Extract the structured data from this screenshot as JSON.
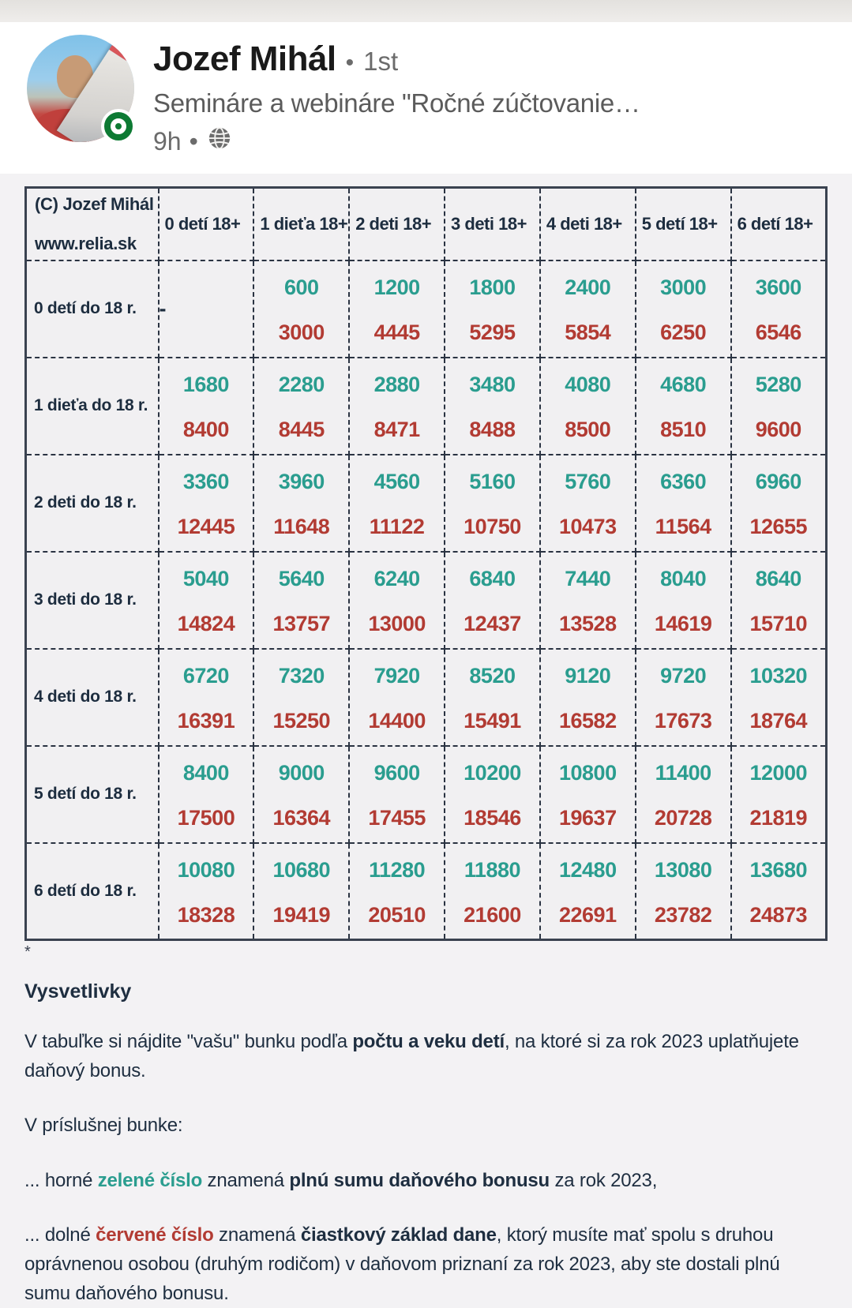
{
  "post": {
    "author": "Jozef Mihál",
    "degree_separator": "•",
    "degree": "1st",
    "subtitle": "Semináre a webináre \"Ročné zúčtovanie…",
    "time": "9h",
    "meta_separator": "•"
  },
  "table": {
    "corner_line1": "(C) Jozef Mihál",
    "corner_line2": "www.relia.sk",
    "columns": [
      "0 detí 18+",
      "1 dieťa 18+",
      "2 deti 18+",
      "3 deti 18+",
      "4 deti 18+",
      "5 detí 18+",
      "6 detí 18+"
    ],
    "rows": [
      {
        "label": "0 detí do 18 r.",
        "cells": [
          {
            "dash": "-"
          },
          {
            "top": "600",
            "bottom": "3000"
          },
          {
            "top": "1200",
            "bottom": "4445"
          },
          {
            "top": "1800",
            "bottom": "5295"
          },
          {
            "top": "2400",
            "bottom": "5854"
          },
          {
            "top": "3000",
            "bottom": "6250"
          },
          {
            "top": "3600",
            "bottom": "6546"
          }
        ]
      },
      {
        "label": "1 dieťa do 18 r.",
        "cells": [
          {
            "top": "1680",
            "bottom": "8400"
          },
          {
            "top": "2280",
            "bottom": "8445"
          },
          {
            "top": "2880",
            "bottom": "8471"
          },
          {
            "top": "3480",
            "bottom": "8488"
          },
          {
            "top": "4080",
            "bottom": "8500"
          },
          {
            "top": "4680",
            "bottom": "8510"
          },
          {
            "top": "5280",
            "bottom": "9600"
          }
        ]
      },
      {
        "label": "2 deti do 18 r.",
        "cells": [
          {
            "top": "3360",
            "bottom": "12445"
          },
          {
            "top": "3960",
            "bottom": "11648"
          },
          {
            "top": "4560",
            "bottom": "11122"
          },
          {
            "top": "5160",
            "bottom": "10750"
          },
          {
            "top": "5760",
            "bottom": "10473"
          },
          {
            "top": "6360",
            "bottom": "11564"
          },
          {
            "top": "6960",
            "bottom": "12655"
          }
        ]
      },
      {
        "label": "3 deti do 18 r.",
        "cells": [
          {
            "top": "5040",
            "bottom": "14824"
          },
          {
            "top": "5640",
            "bottom": "13757"
          },
          {
            "top": "6240",
            "bottom": "13000"
          },
          {
            "top": "6840",
            "bottom": "12437"
          },
          {
            "top": "7440",
            "bottom": "13528"
          },
          {
            "top": "8040",
            "bottom": "14619"
          },
          {
            "top": "8640",
            "bottom": "15710"
          }
        ]
      },
      {
        "label": "4 deti do 18 r.",
        "cells": [
          {
            "top": "6720",
            "bottom": "16391"
          },
          {
            "top": "7320",
            "bottom": "15250"
          },
          {
            "top": "7920",
            "bottom": "14400"
          },
          {
            "top": "8520",
            "bottom": "15491"
          },
          {
            "top": "9120",
            "bottom": "16582"
          },
          {
            "top": "9720",
            "bottom": "17673"
          },
          {
            "top": "10320",
            "bottom": "18764"
          }
        ]
      },
      {
        "label": "5 detí do 18 r.",
        "cells": [
          {
            "top": "8400",
            "bottom": "17500"
          },
          {
            "top": "9000",
            "bottom": "16364"
          },
          {
            "top": "9600",
            "bottom": "17455"
          },
          {
            "top": "10200",
            "bottom": "18546"
          },
          {
            "top": "10800",
            "bottom": "19637"
          },
          {
            "top": "11400",
            "bottom": "20728"
          },
          {
            "top": "12000",
            "bottom": "21819"
          }
        ]
      },
      {
        "label": "6 detí do 18 r.",
        "cells": [
          {
            "top": "10080",
            "bottom": "18328"
          },
          {
            "top": "10680",
            "bottom": "19419"
          },
          {
            "top": "11280",
            "bottom": "20510"
          },
          {
            "top": "11880",
            "bottom": "21600"
          },
          {
            "top": "12480",
            "bottom": "22691"
          },
          {
            "top": "13080",
            "bottom": "23782"
          },
          {
            "top": "13680",
            "bottom": "24873"
          }
        ]
      }
    ]
  },
  "footnote_marker": "*",
  "explanation": {
    "title": "Vysvetlivky",
    "p1": [
      {
        "t": "V tabuľke si nájdite \"vašu\" bunku podľa "
      },
      {
        "t": "počtu a veku detí",
        "b": true
      },
      {
        "t": ", na ktoré si za rok 2023 uplatňujete daňový bonus."
      }
    ],
    "p2": [
      {
        "t": "V príslušnej bunke:"
      }
    ],
    "p3": [
      {
        "t": "... horné "
      },
      {
        "t": "zelené číslo",
        "b": true,
        "c": "green"
      },
      {
        "t": " znamená "
      },
      {
        "t": "plnú sumu daňového bonusu",
        "b": true
      },
      {
        "t": " za rok 2023,"
      }
    ],
    "p4": [
      {
        "t": "... dolné "
      },
      {
        "t": "červené číslo",
        "b": true,
        "c": "red"
      },
      {
        "t": " znamená "
      },
      {
        "t": "čiastkový základ dane",
        "b": true
      },
      {
        "t": ", ktorý musíte mať spolu s druhou oprávnenou osobou (druhým rodičom) v daňovom priznaní za rok 2023, aby ste dostali plnú sumu daňového bonusu."
      }
    ]
  },
  "colors": {
    "green": "#2a9d8f",
    "red": "#b23b33",
    "dark_navy": "#1d2d3f"
  }
}
